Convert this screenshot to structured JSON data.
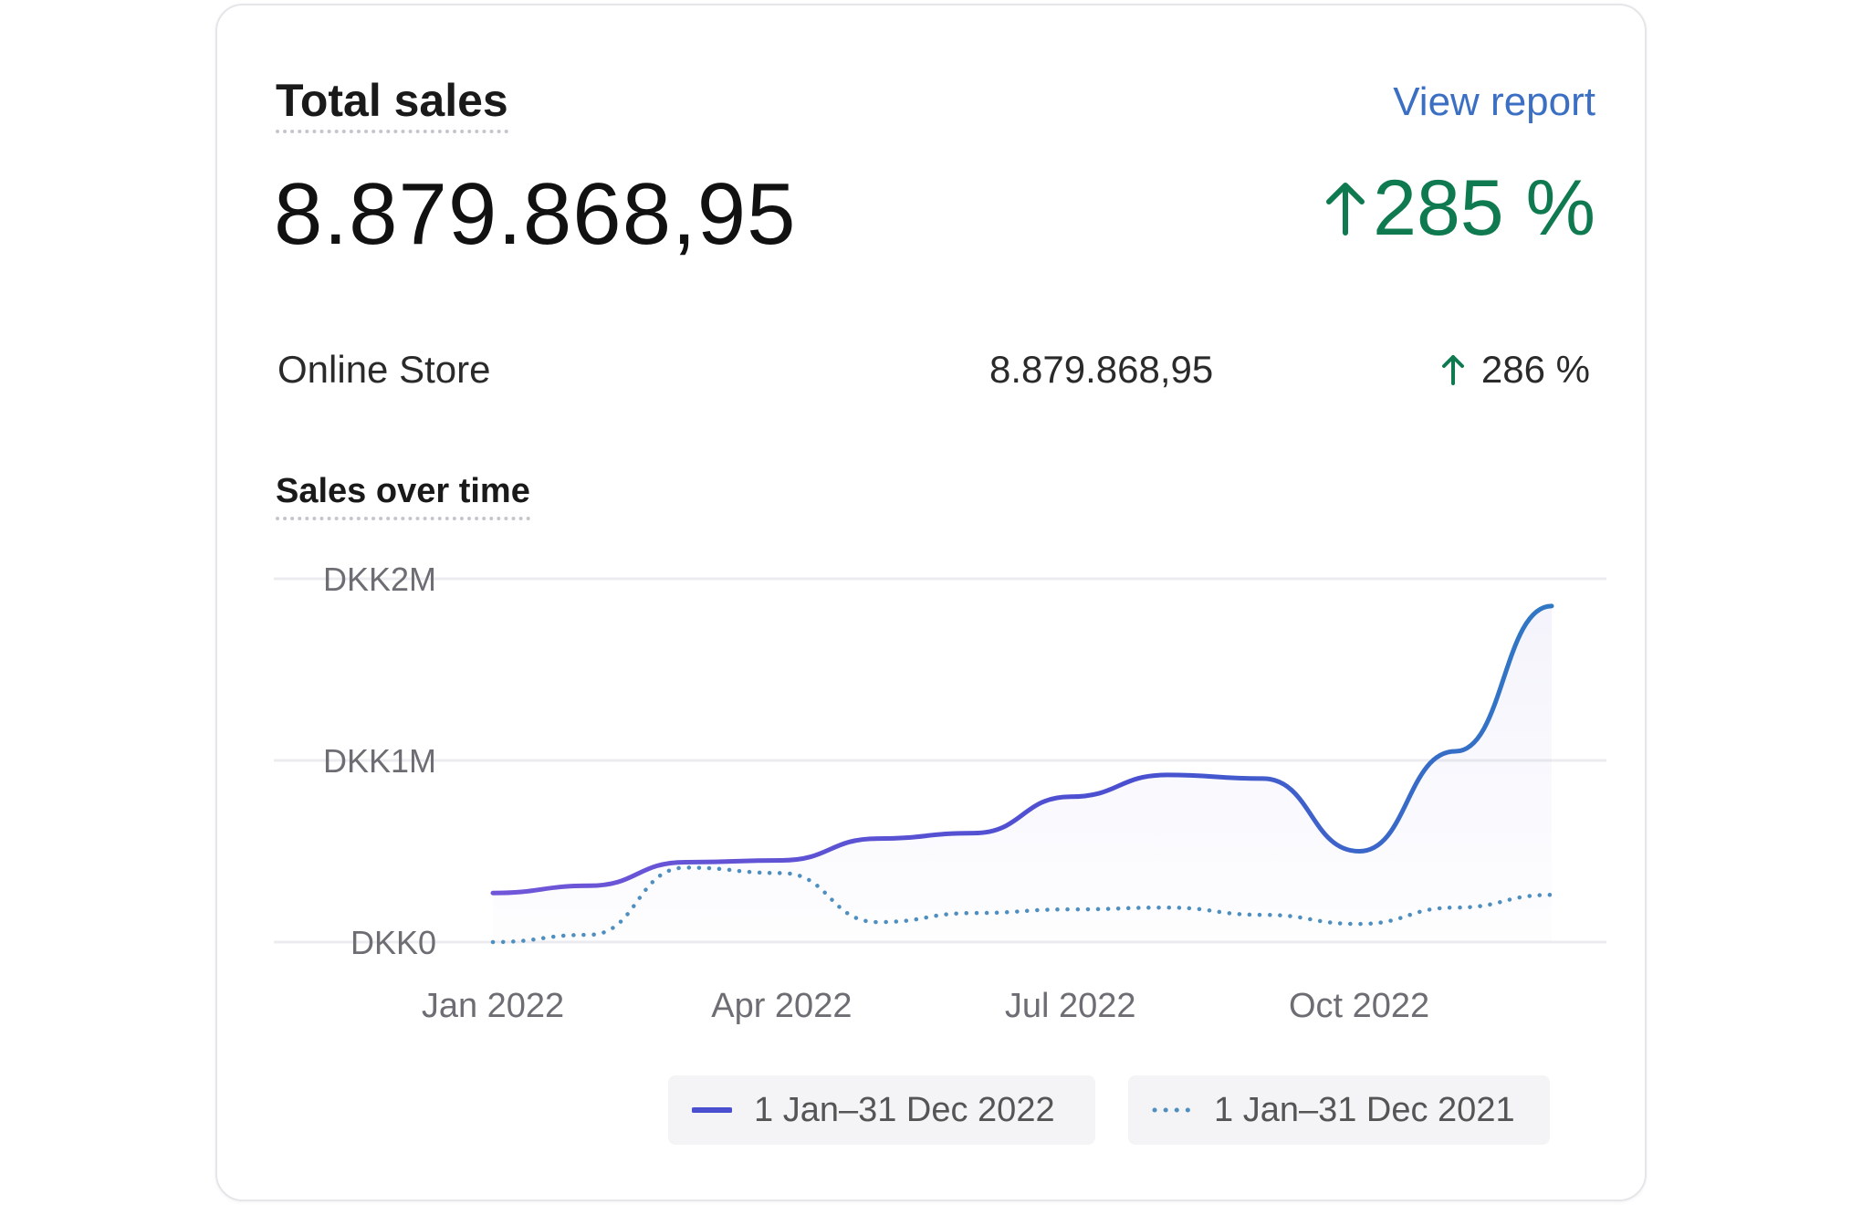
{
  "card": {
    "title": "Total sales",
    "view_report": "View report",
    "total_value": "8.879.868,95",
    "total_change": "285 %",
    "colors": {
      "positive": "#0f7a4f",
      "link": "#3b6fc4",
      "accent": "#4a4fd0"
    }
  },
  "channels": [
    {
      "label": "Online Store",
      "value": "8.879.868,95",
      "change": "286 %"
    }
  ],
  "section_title": "Sales over time",
  "chart_data": {
    "type": "line",
    "x_ticks": [
      "Jan 2022",
      "Apr 2022",
      "Jul 2022",
      "Oct 2022"
    ],
    "y_ticks": [
      "DKK0",
      "DKK1M",
      "DKK2M"
    ],
    "ylim": [
      0,
      2000000
    ],
    "grid": true,
    "legend_position": "bottom",
    "x": [
      "2022-01",
      "2022-02",
      "2022-03",
      "2022-04",
      "2022-05",
      "2022-06",
      "2022-07",
      "2022-08",
      "2022-09",
      "2022-10",
      "2022-11",
      "2022-12"
    ],
    "series": [
      {
        "name": "1 Jan–31 Dec 2022",
        "style": "solid",
        "color": "#4a4fd0",
        "values": [
          270000,
          310000,
          440000,
          450000,
          570000,
          600000,
          800000,
          920000,
          900000,
          500000,
          1050000,
          1850000
        ]
      },
      {
        "name": "1 Jan–31 Dec 2021",
        "style": "dotted",
        "color": "#4f8fc0",
        "values": [
          0,
          40000,
          410000,
          380000,
          110000,
          160000,
          180000,
          190000,
          150000,
          100000,
          190000,
          260000
        ]
      }
    ]
  }
}
